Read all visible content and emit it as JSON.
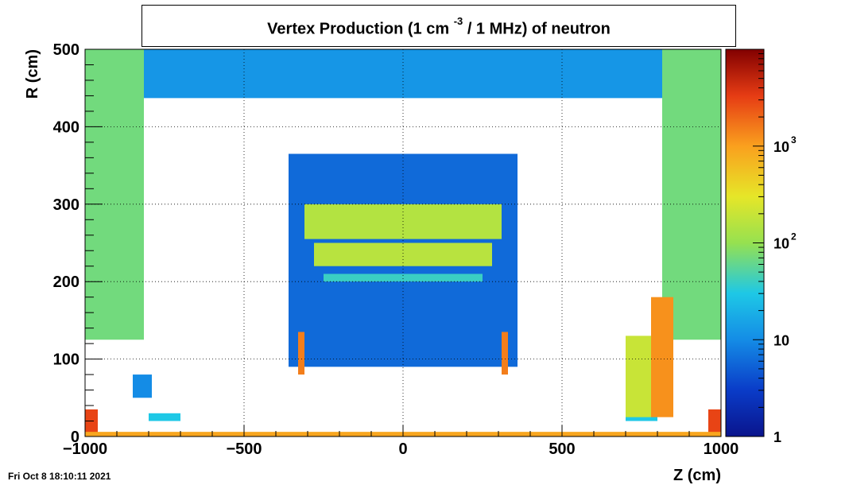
{
  "chart_data": {
    "type": "heatmap",
    "title_prefix": "Vertex Production (1 cm",
    "title_exp": "-3",
    "title_suffix": " / 1 MHz) of   neutron",
    "xlabel": "Z (cm)",
    "ylabel": "R (cm)",
    "xlim": [
      -1000,
      1000
    ],
    "ylim": [
      0,
      500
    ],
    "x_ticks": [
      -1000,
      -500,
      0,
      500,
      1000
    ],
    "x_tick_labels": [
      "−1000",
      "−500",
      "0",
      "500",
      "1000"
    ],
    "y_ticks": [
      0,
      100,
      200,
      300,
      400,
      500
    ],
    "y_tick_labels": [
      "0",
      "100",
      "200",
      "300",
      "400",
      "500"
    ],
    "grid": true,
    "colorbar": {
      "scale": "log",
      "range": [
        1,
        10000
      ],
      "ticks": [
        1,
        10,
        100,
        1000
      ],
      "tick_labels": [
        {
          "base": "1",
          "exp": ""
        },
        {
          "base": "10",
          "exp": ""
        },
        {
          "base": "10",
          "exp": "2"
        },
        {
          "base": "10",
          "exp": "3"
        }
      ]
    },
    "regions": [
      {
        "z": [
          -1000,
          1000
        ],
        "r": [
          437,
          500
        ],
        "v": 12
      },
      {
        "z": [
          -1000,
          -815
        ],
        "r": [
          125,
          500
        ],
        "v": 70
      },
      {
        "z": [
          815,
          1000
        ],
        "r": [
          125,
          500
        ],
        "v": 70
      },
      {
        "z": [
          -360,
          360
        ],
        "r": [
          90,
          365
        ],
        "v": 6
      },
      {
        "z": [
          -310,
          310
        ],
        "r": [
          255,
          300
        ],
        "v": 150
      },
      {
        "z": [
          -280,
          280
        ],
        "r": [
          220,
          250
        ],
        "v": 160
      },
      {
        "z": [
          -250,
          250
        ],
        "r": [
          200,
          210
        ],
        "v": 40
      },
      {
        "z": [
          -800,
          -700
        ],
        "r": [
          20,
          30
        ],
        "v": 30
      },
      {
        "z": [
          700,
          800
        ],
        "r": [
          20,
          30
        ],
        "v": 30
      },
      {
        "z": [
          700,
          780
        ],
        "r": [
          25,
          130
        ],
        "v": 200
      },
      {
        "z": [
          780,
          850
        ],
        "r": [
          25,
          180
        ],
        "v": 1200
      },
      {
        "z": [
          -1000,
          -960
        ],
        "r": [
          5,
          35
        ],
        "v": 3000
      },
      {
        "z": [
          960,
          1000
        ],
        "r": [
          5,
          35
        ],
        "v": 3000
      },
      {
        "z": [
          -850,
          -790
        ],
        "r": [
          50,
          80
        ],
        "v": 10
      },
      {
        "z": [
          -330,
          -310
        ],
        "r": [
          80,
          135
        ],
        "v": 1500
      },
      {
        "z": [
          310,
          330
        ],
        "r": [
          80,
          135
        ],
        "v": 1500
      },
      {
        "z": [
          -1000,
          1000
        ],
        "r": [
          0,
          6
        ],
        "v": 900
      }
    ]
  },
  "timestamp": "Fri Oct  8 18:10:11 2021"
}
